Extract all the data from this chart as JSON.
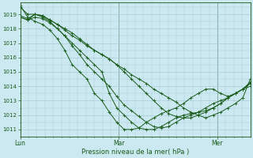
{
  "xlabel": "Pression niveau de la mer( hPa )",
  "background_color": "#cce8f0",
  "grid_color": "#aaccd8",
  "line_color": "#1a5c1a",
  "tick_label_color": "#1a5c1a",
  "axis_label_color": "#1a5c1a",
  "ylim": [
    1010.5,
    1019.8
  ],
  "yticks": [
    1011,
    1012,
    1013,
    1014,
    1015,
    1016,
    1017,
    1018,
    1019
  ],
  "day_labels": [
    "Lun",
    "Mar",
    "Mer"
  ],
  "day_positions": [
    0,
    36,
    72
  ],
  "xlim": [
    0,
    84
  ],
  "series": [
    [
      1019.6,
      1018.8,
      1018.5,
      1018.3,
      1017.9,
      1017.3,
      1016.5,
      1015.5,
      1015.0,
      1014.5,
      1013.5,
      1013.0,
      1012.2,
      1011.5,
      1011.0,
      1011.0,
      1011.1,
      1011.5,
      1011.8,
      1012.1,
      1012.3,
      1012.5,
      1012.8,
      1013.2,
      1013.5,
      1013.8,
      1013.8,
      1013.5,
      1013.3,
      1013.5,
      1013.8,
      1014.3
    ],
    [
      1018.8,
      1018.6,
      1018.8,
      1018.7,
      1018.4,
      1018.0,
      1017.5,
      1016.8,
      1016.2,
      1015.5,
      1015.0,
      1014.5,
      1014.0,
      1013.3,
      1012.7,
      1012.3,
      1011.9,
      1011.5,
      1011.2,
      1011.1,
      1011.2,
      1011.5,
      1011.8,
      1012.0,
      1012.2,
      1012.5,
      1012.8,
      1013.0,
      1013.2,
      1013.5,
      1013.8,
      1014.0
    ],
    [
      1018.8,
      1018.6,
      1019.0,
      1018.8,
      1018.5,
      1018.0,
      1017.5,
      1017.0,
      1016.5,
      1016.0,
      1015.5,
      1015.0,
      1013.5,
      1012.5,
      1012.0,
      1011.5,
      1011.1,
      1011.0,
      1011.0,
      1011.2,
      1011.5,
      1011.8,
      1012.0,
      1012.1,
      1012.2,
      1012.3,
      1012.5,
      1012.8,
      1013.2,
      1013.5,
      1013.8,
      1014.2
    ],
    [
      1018.9,
      1018.7,
      1019.0,
      1018.9,
      1018.6,
      1018.3,
      1018.0,
      1017.7,
      1017.3,
      1016.9,
      1016.5,
      1016.2,
      1015.9,
      1015.5,
      1015.0,
      1014.5,
      1014.0,
      1013.5,
      1013.0,
      1012.5,
      1012.1,
      1011.9,
      1011.8,
      1011.8,
      1012.0,
      1012.2,
      1012.5,
      1012.8,
      1013.2,
      1013.5,
      1013.8,
      1014.2
    ],
    [
      1019.5,
      1019.0,
      1019.0,
      1018.9,
      1018.6,
      1018.3,
      1017.9,
      1017.5,
      1017.2,
      1016.8,
      1016.5,
      1016.2,
      1015.9,
      1015.5,
      1015.2,
      1014.8,
      1014.5,
      1014.2,
      1013.8,
      1013.5,
      1013.2,
      1012.9,
      1012.5,
      1012.2,
      1012.0,
      1011.8,
      1012.0,
      1012.2,
      1012.5,
      1012.8,
      1013.2,
      1014.5
    ]
  ],
  "marker_size": 2.5,
  "line_width": 0.7,
  "ytick_fontsize": 5.0,
  "xtick_fontsize": 5.5,
  "xlabel_fontsize": 6.0
}
